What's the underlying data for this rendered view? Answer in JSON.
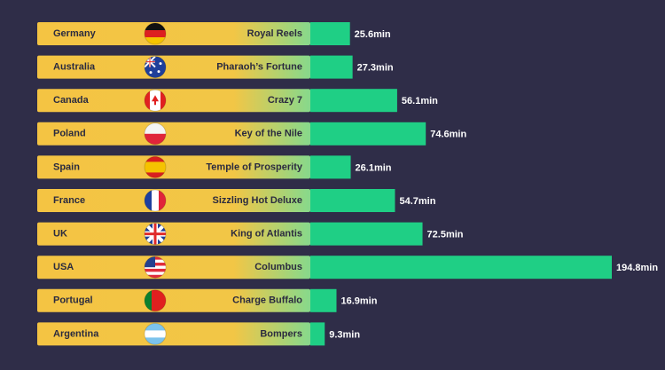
{
  "chart_data": {
    "type": "bar",
    "categories": [
      "Germany",
      "Australia",
      "Canada",
      "Poland",
      "Spain",
      "France",
      "UK",
      "USA",
      "Portugal",
      "Argentina"
    ],
    "games": [
      "Royal Reels",
      "Pharaoh’s Fortune",
      "Crazy 7",
      "Key of the Nile",
      "Temple of Prosperity",
      "Sizzling Hot Deluxe",
      "King of Atlantis",
      "Columbus",
      "Charge Buffalo",
      "Bompers"
    ],
    "values": [
      25.6,
      27.3,
      56.1,
      74.6,
      26.1,
      54.7,
      72.5,
      194.8,
      16.9,
      9.3
    ],
    "value_labels": [
      "25.6min",
      "27.3min",
      "56.1min",
      "74.6min",
      "26.1min",
      "54.7min",
      "72.5min",
      "194.8min",
      "16.9min",
      "9.3min"
    ],
    "color": "#1fcf85"
  }
}
